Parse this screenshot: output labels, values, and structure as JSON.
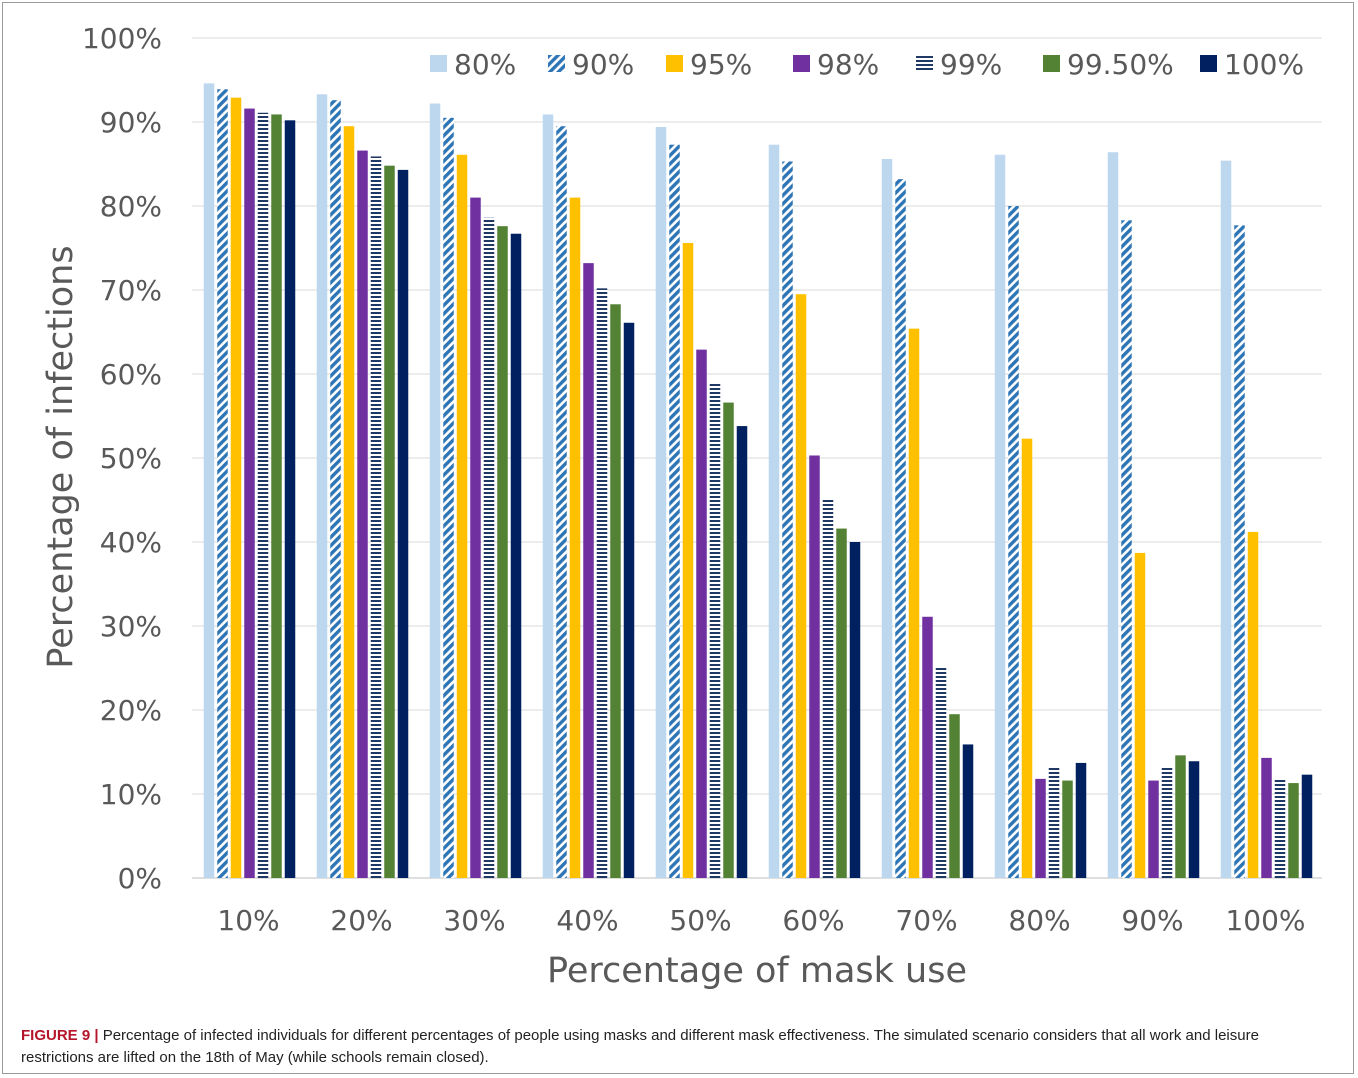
{
  "chart_data": {
    "type": "bar",
    "title": "",
    "xlabel": "Percentage of mask use",
    "ylabel": "Percentage of infections",
    "ylim": [
      0,
      100
    ],
    "y_ticks": [
      "0%",
      "10%",
      "20%",
      "30%",
      "40%",
      "50%",
      "60%",
      "70%",
      "80%",
      "90%",
      "100%"
    ],
    "categories": [
      "10%",
      "20%",
      "30%",
      "40%",
      "50%",
      "60%",
      "70%",
      "80%",
      "90%",
      "100%"
    ],
    "grid": true,
    "legend_position": "top",
    "series": [
      {
        "name": "80%",
        "color": "#bdd7ee",
        "pattern": "solid",
        "values": [
          94.6,
          93.3,
          92.2,
          90.9,
          89.4,
          87.3,
          85.6,
          86.1,
          86.4,
          85.4
        ]
      },
      {
        "name": "90%",
        "color": "#2e75b6",
        "pattern": "diagonal",
        "values": [
          93.9,
          92.6,
          90.5,
          89.5,
          87.3,
          85.3,
          83.2,
          80.0,
          78.3,
          77.7
        ]
      },
      {
        "name": "95%",
        "color": "#ffc000",
        "pattern": "solid",
        "values": [
          92.9,
          89.5,
          86.1,
          81.0,
          75.6,
          69.5,
          65.4,
          52.3,
          38.7,
          41.2
        ]
      },
      {
        "name": "98%",
        "color": "#7030a0",
        "pattern": "solid",
        "values": [
          91.6,
          86.6,
          81.0,
          73.2,
          62.9,
          50.3,
          31.1,
          11.8,
          11.6,
          14.3
        ]
      },
      {
        "name": "99%",
        "color": "#1f3864",
        "pattern": "horizontal",
        "values": [
          91.1,
          85.9,
          78.6,
          70.2,
          59.0,
          45.1,
          25.0,
          13.2,
          13.1,
          11.8
        ]
      },
      {
        "name": "99.50%",
        "color": "#548235",
        "pattern": "solid",
        "values": [
          90.9,
          84.8,
          77.6,
          68.3,
          56.6,
          41.6,
          19.5,
          11.6,
          14.6,
          11.3
        ]
      },
      {
        "name": "100%",
        "color": "#002060",
        "pattern": "solid",
        "values": [
          90.2,
          84.3,
          76.7,
          66.1,
          53.8,
          40.0,
          15.9,
          13.7,
          13.9,
          12.3
        ]
      }
    ]
  },
  "caption": {
    "label": "FIGURE 9 |",
    "text": " Percentage of infected individuals for different percentages of people using masks and different mask effectiveness. The simulated scenario considers that all work and leisure restrictions are lifted on the 18th of May (while schools remain closed)."
  }
}
